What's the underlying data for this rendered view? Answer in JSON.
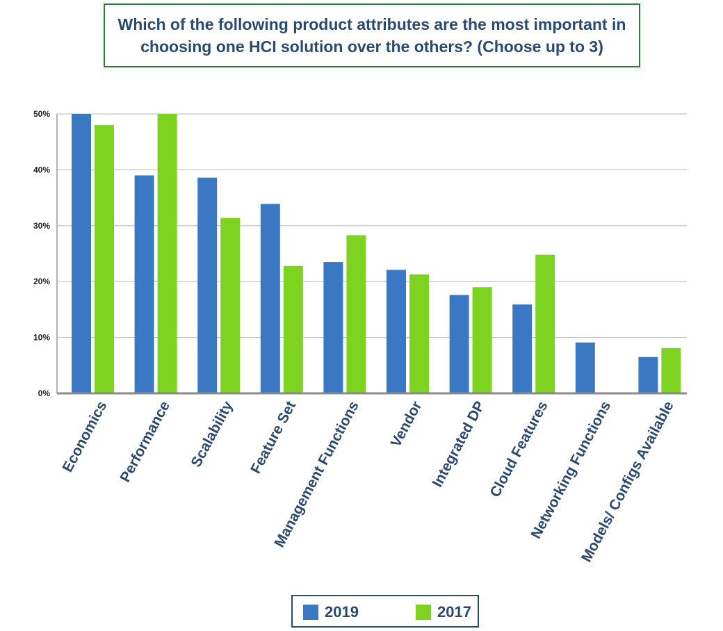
{
  "chart_data": {
    "type": "bar",
    "title": "Which of the following product attributes are the most important in choosing one HCI solution over the others? (Choose up to 3)",
    "categories": [
      "Economics",
      "Performance",
      "Scalability",
      "Feature Set",
      "Management Functions",
      "Vendor",
      "Integrated DP",
      "Cloud Features",
      "Networking Functions",
      "Models/ Configs Available"
    ],
    "series": [
      {
        "name": "2019",
        "color": "#3b78c3",
        "values": [
          50,
          39,
          38.6,
          33.9,
          23.5,
          22.1,
          17.6,
          15.9,
          9.1,
          6.5
        ]
      },
      {
        "name": "2017",
        "color": "#7ed321",
        "values": [
          48,
          50,
          31.4,
          22.8,
          28.3,
          21.3,
          19.0,
          24.8,
          null,
          8.1
        ]
      }
    ],
    "yticks": [
      "0%",
      "10%",
      "20%",
      "30%",
      "40%",
      "50%"
    ],
    "ylim": [
      0,
      50
    ],
    "grid": true,
    "legend_position": "bottom"
  }
}
